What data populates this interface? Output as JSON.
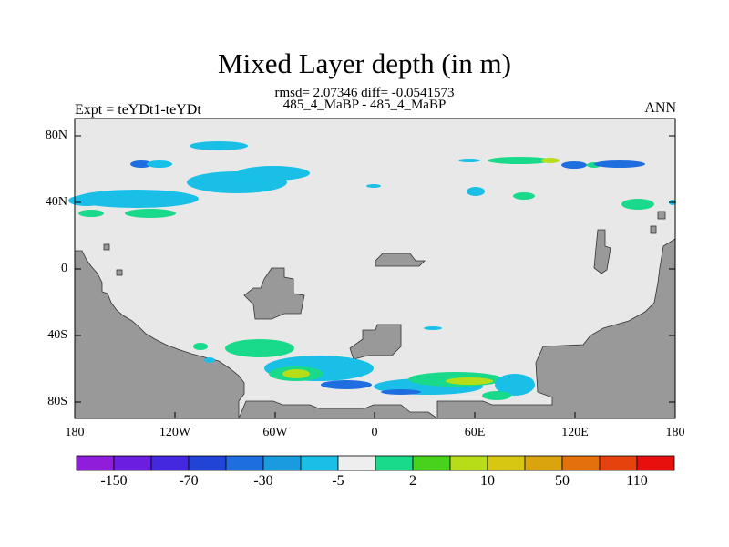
{
  "title": "Mixed Layer depth (in m)",
  "stats": "rmsd= 2.07346 diff= -0.0541573",
  "subtitle": "485_4_MaBP - 485_4_MaBP",
  "left_label": "Expt = teYDt1-teYDt",
  "right_label": "ANN",
  "y_ticks": [
    "80N",
    "40N",
    "0",
    "40S",
    "80S"
  ],
  "x_ticks": [
    "180",
    "120W",
    "60W",
    "0",
    "60E",
    "120E",
    "180"
  ],
  "colorbar": {
    "labels": [
      "-150",
      "-70",
      "-30",
      "-5",
      "2",
      "10",
      "50",
      "110"
    ],
    "colors": [
      "#8f1dd9",
      "#6a1ee0",
      "#4428e0",
      "#2244d6",
      "#1f6ee0",
      "#1a9be0",
      "#19bfe6",
      "#eeeeee",
      "#19d98a",
      "#49d21c",
      "#b6dd18",
      "#d6c812",
      "#d9a40e",
      "#e36f0d",
      "#e6420d",
      "#e80f0f"
    ]
  },
  "colors": {
    "background": "#e8e8e8",
    "land": "#999999"
  }
}
